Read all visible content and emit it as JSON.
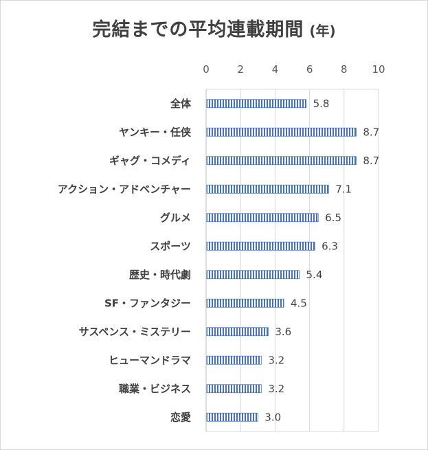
{
  "chart_data": {
    "type": "bar",
    "orientation": "horizontal",
    "title": "完結までの平均連載期間",
    "title_unit": "(年)",
    "categories": [
      "全体",
      "ヤンキー・任侠",
      "ギャグ・コメディ",
      "アクション・アドベンチャー",
      "グルメ",
      "スポーツ",
      "歴史・時代劇",
      "SF・ファンタジー",
      "サスペンス・ミステリー",
      "ヒューマンドラマ",
      "職業・ビジネス",
      "恋愛"
    ],
    "values": [
      5.8,
      8.7,
      8.7,
      7.1,
      6.5,
      6.3,
      5.4,
      4.5,
      3.6,
      3.2,
      3.2,
      3.0
    ],
    "value_labels": [
      "5.8",
      "8.7",
      "8.7",
      "7.1",
      "6.5",
      "6.3",
      "5.4",
      "4.5",
      "3.6",
      "3.2",
      "3.2",
      "3.0"
    ],
    "xlim": [
      0,
      10
    ],
    "xticks": [
      "0",
      "2",
      "4",
      "6",
      "8",
      "10"
    ],
    "xaxis_position": "top",
    "grid": true,
    "bar_color": "#4472c4",
    "bar_pattern": "vertical-stripes",
    "xlabel": "",
    "ylabel": ""
  }
}
